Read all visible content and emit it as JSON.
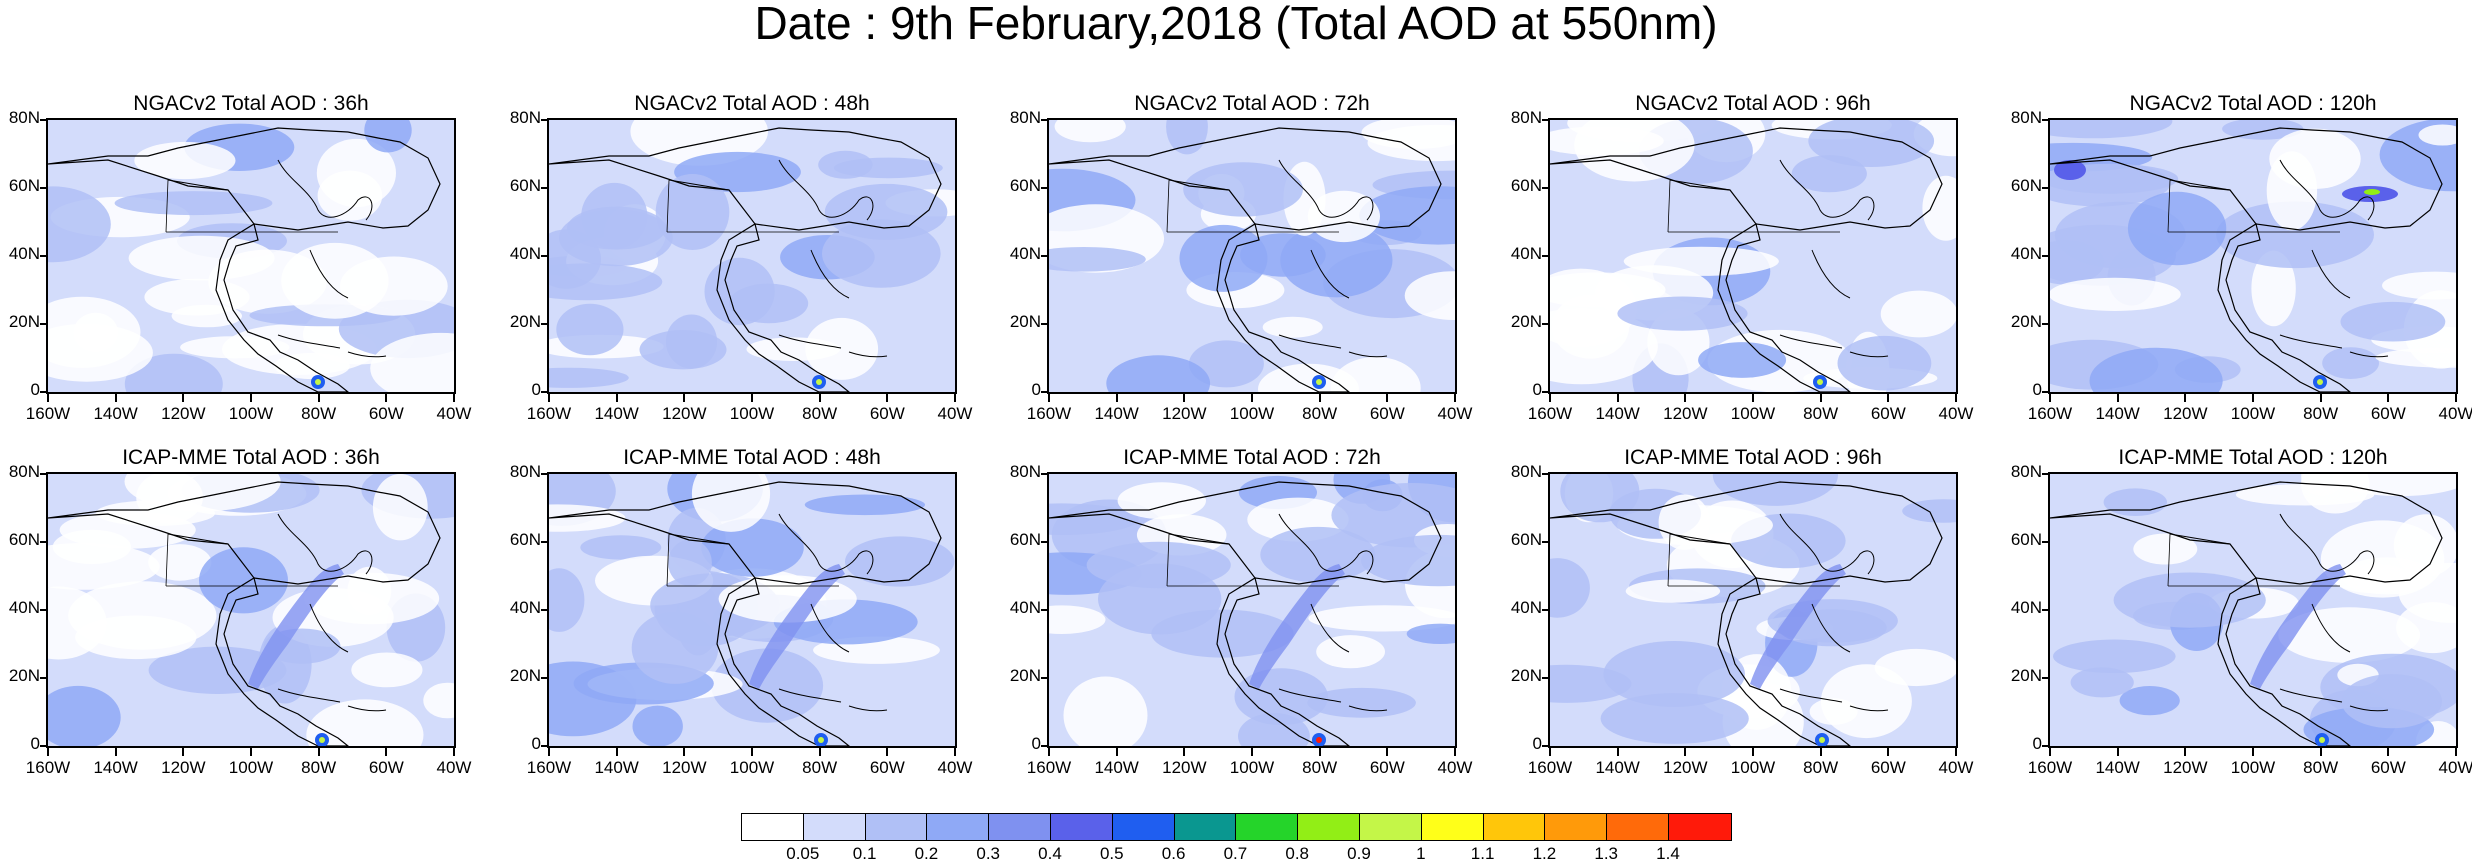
{
  "title": "Date : 9th February,2018 (Total AOD at 550nm)",
  "lat_labels": [
    "80N",
    "60N",
    "40N",
    "20N",
    "0"
  ],
  "lon_labels": [
    "160W",
    "140W",
    "120W",
    "100W",
    "80W",
    "60W",
    "40W"
  ],
  "panels": [
    {
      "title": "NGACv2 Total AOD : 36h"
    },
    {
      "title": "NGACv2 Total AOD : 48h"
    },
    {
      "title": "NGACv2 Total AOD : 72h"
    },
    {
      "title": "NGACv2 Total AOD : 96h"
    },
    {
      "title": "NGACv2 Total AOD : 120h"
    },
    {
      "title": "ICAP-MME Total AOD : 36h"
    },
    {
      "title": "ICAP-MME Total AOD : 48h"
    },
    {
      "title": "ICAP-MME Total AOD : 72h"
    },
    {
      "title": "ICAP-MME Total AOD : 96h"
    },
    {
      "title": "ICAP-MME Total AOD : 120h"
    }
  ],
  "colorbar": {
    "labels": [
      "0.05",
      "0.1",
      "0.2",
      "0.3",
      "0.4",
      "0.5",
      "0.6",
      "0.7",
      "0.8",
      "0.9",
      "1",
      "1.1",
      "1.2",
      "1.3",
      "1.4"
    ],
    "colors": [
      "#ffffff",
      "#d3dcfb",
      "#b0c0f6",
      "#8fa9f6",
      "#7f91f0",
      "#5a61ea",
      "#1f5ef0",
      "#0a9790",
      "#25d42a",
      "#92ee16",
      "#c4f648",
      "#ffff19",
      "#ffc60a",
      "#ff9a0a",
      "#ff6a0a",
      "#ff1a0a"
    ]
  }
}
